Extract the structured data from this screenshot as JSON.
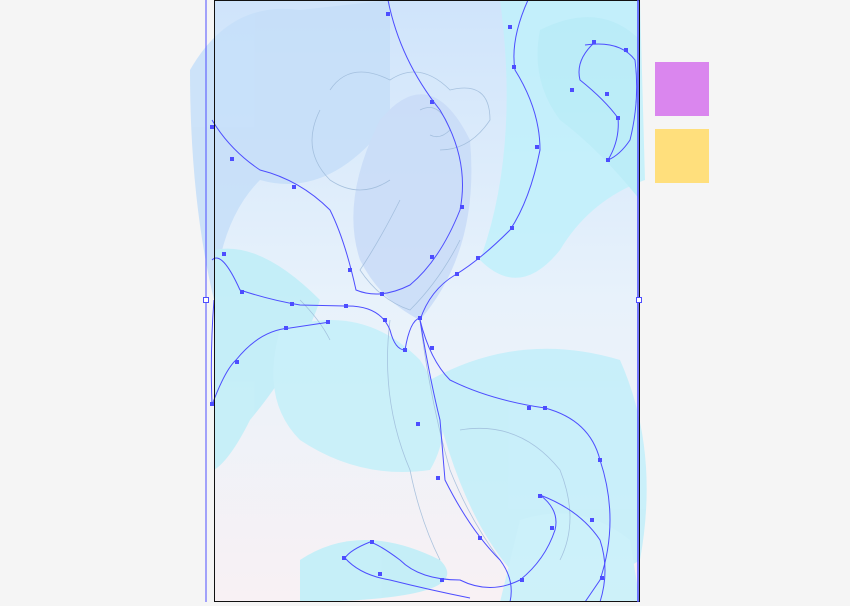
{
  "canvas": {
    "background": "#f5f5f5",
    "artboard_fill": "#f7f2f6",
    "artboard_border": "#111111",
    "selection_color": "#4d4dff"
  },
  "artwork": {
    "colors": {
      "sky_blue": "#c9e6fb",
      "cyan": "#c4f2fb",
      "aqua_light": "#bdf0f8",
      "sketch_line": "#9bb8d8"
    }
  },
  "swatches": [
    {
      "name": "violet",
      "color": "#da86ee"
    },
    {
      "name": "yellow",
      "color": "#ffdf7c"
    }
  ]
}
